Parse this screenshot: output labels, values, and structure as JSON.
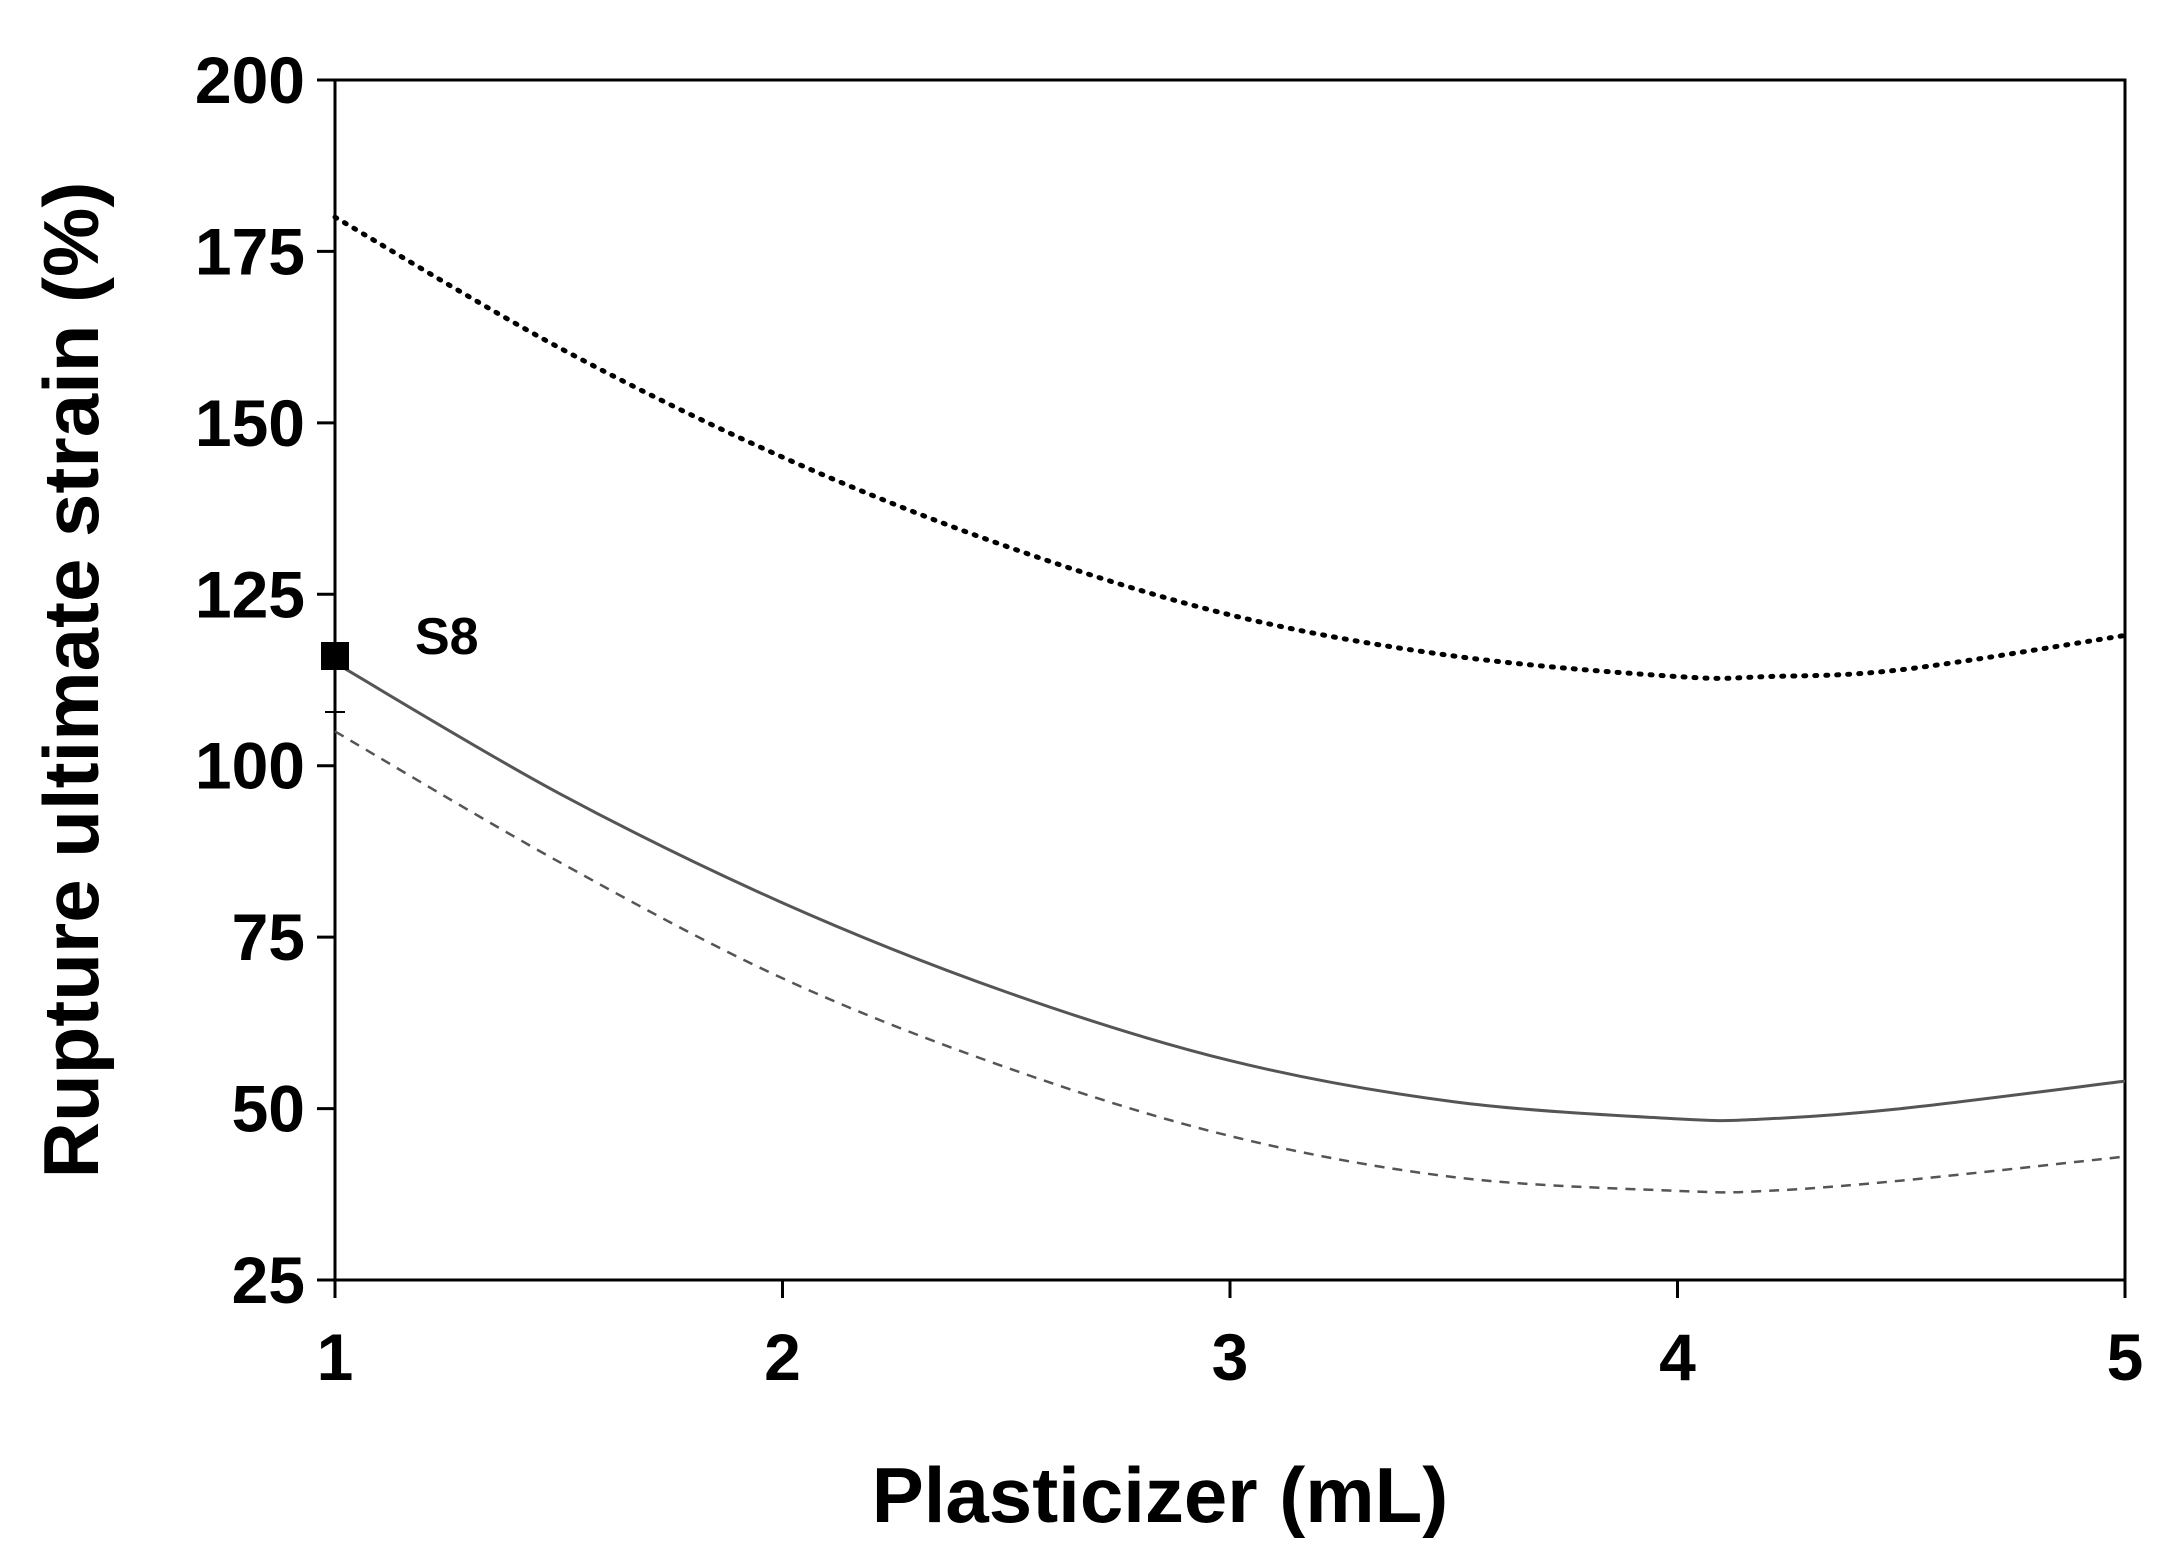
{
  "chart_data": {
    "type": "line",
    "title": "",
    "xlabel": "Plasticizer (mL)",
    "ylabel": "Rupture ultimate strain (%)",
    "xlim": [
      1,
      5
    ],
    "ylim": [
      25,
      200
    ],
    "x_ticks": [
      "1",
      "2",
      "3",
      "4",
      "5"
    ],
    "y_ticks": [
      "25",
      "50",
      "75",
      "100",
      "125",
      "150",
      "175",
      "200"
    ],
    "grid": false,
    "legend": "none",
    "series": [
      {
        "style": "dotted",
        "color": "#000000",
        "x": [
          1.0,
          1.5,
          2.0,
          2.5,
          3.0,
          3.5,
          4.0,
          4.2,
          4.5,
          5.0
        ],
        "y": [
          180,
          161,
          145,
          132,
          122,
          116,
          113,
          113,
          114,
          119
        ]
      },
      {
        "style": "solid",
        "color": "#555555",
        "x": [
          1.0,
          1.5,
          2.0,
          2.5,
          3.0,
          3.5,
          4.0,
          4.2,
          4.5,
          5.0
        ],
        "y": [
          115,
          96,
          80,
          67,
          57,
          51,
          48.5,
          48.5,
          50,
          54
        ]
      },
      {
        "style": "dashed",
        "color": "#555555",
        "x": [
          1.0,
          1.5,
          2.0,
          2.5,
          3.0,
          3.5,
          4.0,
          4.2,
          4.5,
          5.0
        ],
        "y": [
          105,
          86,
          69,
          56,
          46,
          40,
          38,
          38,
          39.5,
          43
        ]
      }
    ],
    "points": [
      {
        "label": "S8",
        "x": 1.0,
        "y": 116
      }
    ]
  }
}
